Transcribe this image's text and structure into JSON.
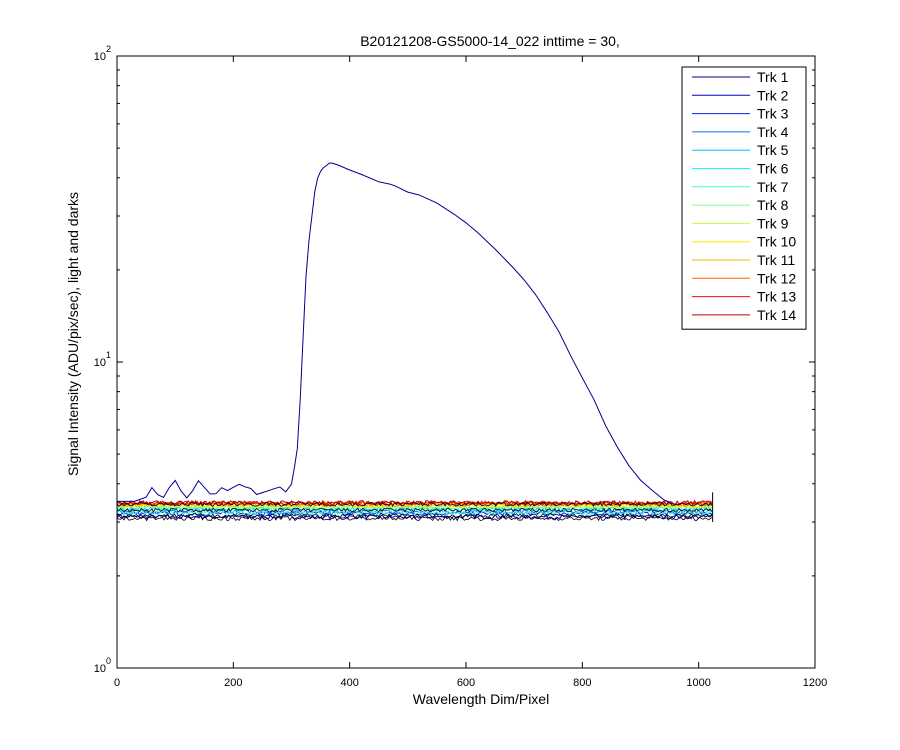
{
  "chart_data": {
    "type": "line",
    "title": "B20121208-GS5000-14_022 inttime = 30,",
    "xlabel": "Wavelength Dim/Pixel",
    "ylabel": "Signal Intensity (ADU/pix/sec), light and darks",
    "xlim": [
      0,
      1200
    ],
    "ylim": [
      1,
      100
    ],
    "yscale": "log",
    "xticks": [
      "0",
      "200",
      "400",
      "600",
      "800",
      "1000",
      "1200"
    ],
    "yticks": [
      {
        "base": "10",
        "exp": "0"
      },
      {
        "base": "10",
        "exp": "1"
      },
      {
        "base": "10",
        "exp": "2"
      }
    ],
    "grid": false,
    "legend_position": "top-right",
    "series": [
      {
        "name": "Trk 1",
        "color": "#00008f",
        "x": [
          0,
          30,
          50,
          60,
          70,
          80,
          90,
          100,
          110,
          120,
          130,
          140,
          150,
          160,
          170,
          180,
          190,
          200,
          210,
          220,
          230,
          240,
          250,
          260,
          270,
          280,
          290,
          300,
          305,
          310,
          315,
          320,
          325,
          330,
          335,
          340,
          345,
          350,
          355,
          360,
          365,
          370,
          380,
          400,
          420,
          450,
          470,
          480,
          500,
          520,
          550,
          580,
          600,
          620,
          650,
          680,
          700,
          720,
          740,
          760,
          780,
          800,
          820,
          840,
          860,
          880,
          900,
          920,
          940,
          955
        ],
        "y": [
          3.5,
          3.5,
          3.6,
          3.9,
          3.7,
          3.6,
          3.9,
          4.1,
          3.8,
          3.6,
          3.8,
          4.1,
          3.9,
          3.7,
          3.7,
          3.9,
          3.8,
          3.9,
          4.0,
          3.9,
          3.85,
          3.7,
          3.75,
          3.8,
          3.85,
          3.9,
          3.75,
          4.0,
          4.5,
          5.2,
          7.5,
          12,
          19,
          25,
          30,
          36,
          40,
          42,
          43,
          44,
          44.5,
          44.8,
          44,
          42.5,
          41,
          39,
          38,
          37.5,
          36,
          35,
          33,
          30.5,
          28.5,
          26.5,
          23.5,
          20.5,
          18.5,
          16.5,
          14.5,
          12.5,
          10.5,
          8.9,
          7.5,
          6.2,
          5.3,
          4.6,
          4.1,
          3.8,
          3.55,
          3.45
        ]
      },
      {
        "name": "Trk 2",
        "color": "#0000cf",
        "level": 3.12
      },
      {
        "name": "Trk 3",
        "color": "#0020ff",
        "level": 3.2
      },
      {
        "name": "Trk 4",
        "color": "#0070ff",
        "level": 3.25
      },
      {
        "name": "Trk 5",
        "color": "#00bfff",
        "level": 3.3
      },
      {
        "name": "Trk 6",
        "color": "#10ffef",
        "level": 3.33
      },
      {
        "name": "Trk 7",
        "color": "#40ffbf",
        "level": 3.22
      },
      {
        "name": "Trk 8",
        "color": "#80ff80",
        "level": 3.36
      },
      {
        "name": "Trk 9",
        "color": "#bfff40",
        "level": 3.38
      },
      {
        "name": "Trk 10",
        "color": "#ffef00",
        "level": 3.4
      },
      {
        "name": "Trk 11",
        "color": "#ffaf00",
        "level": 3.42
      },
      {
        "name": "Trk 12",
        "color": "#ff6000",
        "level": 3.44
      },
      {
        "name": "Trk 13",
        "color": "#ef1000",
        "level": 3.46
      },
      {
        "name": "Trk 14",
        "color": "#bf0000",
        "level": 3.47
      }
    ],
    "x_end": 1024
  }
}
